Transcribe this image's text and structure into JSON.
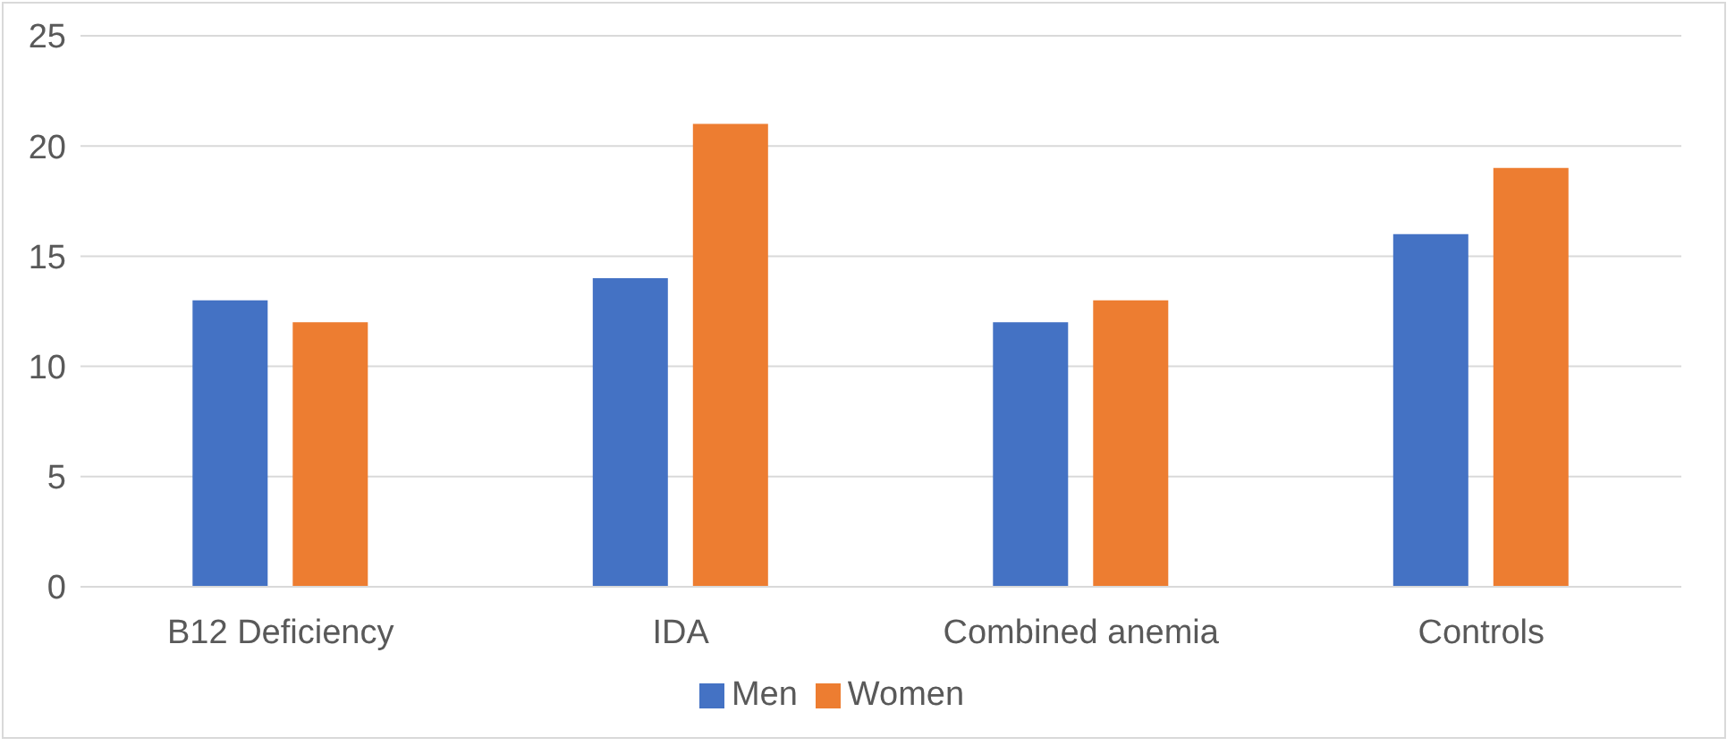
{
  "chart_data": {
    "type": "bar",
    "categories": [
      "B12 Deficiency",
      "IDA",
      "Combined anemia",
      "Controls"
    ],
    "series": [
      {
        "name": "Men",
        "color": "#4472c4",
        "values": [
          13,
          14,
          12,
          16
        ]
      },
      {
        "name": "Women",
        "color": "#ed7d31",
        "values": [
          12,
          21,
          13,
          19
        ]
      }
    ],
    "ylim": [
      0,
      25
    ],
    "yticks": [
      0,
      5,
      10,
      15,
      20,
      25
    ],
    "grid": "y",
    "legend": "bottom"
  }
}
